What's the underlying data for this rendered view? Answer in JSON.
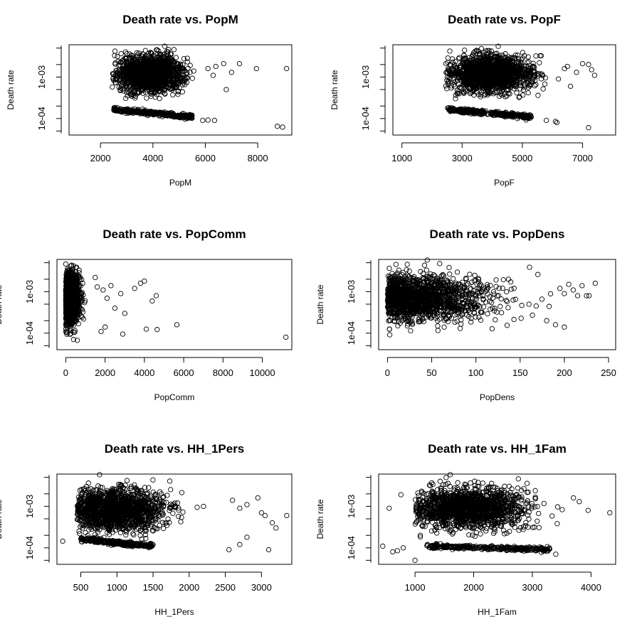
{
  "chart_data": [
    {
      "type": "scatter",
      "title": "Death rate vs. PopM",
      "xlabel": "PopM",
      "ylabel": "Death rate",
      "x_ticks": [
        "2000",
        "4000",
        "6000",
        "8000"
      ],
      "x_tick_values": [
        2000,
        4000,
        6000,
        8000
      ],
      "xlim": [
        800,
        9300
      ],
      "y_scale": "log",
      "y_ticks": [
        "1e-04",
        "1e-03"
      ],
      "y_tick_values": [
        0.0001,
        0.001
      ],
      "ylim": [
        4e-05,
        0.006
      ],
      "grid": false,
      "series": [
        {
          "cloud": {
            "x_range": [
              2450,
              5600
            ],
            "x_center": 3900,
            "x_sd": 650,
            "y_range": [
              0.0003,
              0.005
            ],
            "y_center": 0.0012,
            "log_sd": 0.45
          },
          "band": {
            "x_range": [
              2500,
              5500
            ],
            "y_at_start": 0.000165,
            "y_at_end": 0.00011
          },
          "points": [
            [
              6100,
              0.0016
            ],
            [
              6300,
              0.0011
            ],
            [
              6400,
              0.0018
            ],
            [
              6700,
              0.0021
            ],
            [
              7000,
              0.0013
            ],
            [
              7300,
              0.0021
            ],
            [
              7950,
              0.0016
            ],
            [
              9100,
              0.0016
            ],
            [
              8750,
              6.5e-05
            ],
            [
              8950,
              6.2e-05
            ],
            [
              4450,
              0.0055
            ],
            [
              5900,
              9e-05
            ],
            [
              6100,
              9.2e-05
            ],
            [
              6350,
              9e-05
            ],
            [
              6800,
              0.0005
            ]
          ]
        }
      ]
    },
    {
      "type": "scatter",
      "title": "Death rate vs. PopF",
      "xlabel": "PopF",
      "ylabel": "Death rate",
      "x_ticks": [
        "1000",
        "3000",
        "5000",
        "7000"
      ],
      "x_tick_values": [
        1000,
        3000,
        5000,
        7000
      ],
      "xlim": [
        700,
        8100
      ],
      "y_scale": "log",
      "y_ticks": [
        "1e-04",
        "1e-03"
      ],
      "y_tick_values": [
        0.0001,
        0.001
      ],
      "ylim": [
        4e-05,
        0.006
      ],
      "grid": false,
      "series": [
        {
          "cloud": {
            "x_range": [
              2450,
              5900
            ],
            "x_center": 3900,
            "x_sd": 700,
            "y_range": [
              0.0003,
              0.005
            ],
            "y_center": 0.0012,
            "log_sd": 0.45
          },
          "band": {
            "x_range": [
              2500,
              5300
            ],
            "y_at_start": 0.000165,
            "y_at_end": 0.00011
          },
          "points": [
            [
              6500,
              0.0018
            ],
            [
              6800,
              0.0013
            ],
            [
              7000,
              0.0021
            ],
            [
              7200,
              0.002
            ],
            [
              7300,
              0.0015
            ],
            [
              7400,
              0.0011
            ],
            [
              6600,
              0.0006
            ],
            [
              6100,
              8.5e-05
            ],
            [
              6150,
              8e-05
            ],
            [
              7200,
              6e-05
            ],
            [
              4200,
              0.0055
            ],
            [
              5800,
              9e-05
            ],
            [
              6400,
              0.0016
            ],
            [
              6200,
              0.0009
            ]
          ]
        }
      ]
    },
    {
      "type": "scatter",
      "title": "Death rate vs. PopComm",
      "xlabel": "PopComm",
      "ylabel": "Death rate",
      "x_ticks": [
        "0",
        "2000",
        "4000",
        "6000",
        "8000",
        "10000"
      ],
      "x_tick_values": [
        0,
        2000,
        4000,
        6000,
        8000,
        10000
      ],
      "xlim": [
        -450,
        11500
      ],
      "y_scale": "log",
      "y_ticks": [
        "1e-04",
        "1e-03"
      ],
      "y_tick_values": [
        0.0001,
        0.001
      ],
      "ylim": [
        4e-05,
        0.006
      ],
      "grid": false,
      "series": [
        {
          "cloud": {
            "x_range": [
              0,
              1400
            ],
            "x_center": 150,
            "x_sd": 250,
            "y_range": [
              6e-05,
              0.005
            ],
            "y_center": 0.0007,
            "log_sd": 0.6
          },
          "band": null,
          "points": [
            [
              1900,
              0.0011
            ],
            [
              2100,
              0.0007
            ],
            [
              2300,
              0.0014
            ],
            [
              2500,
              0.0004
            ],
            [
              2800,
              0.0009
            ],
            [
              3000,
              0.0003
            ],
            [
              3500,
              0.0012
            ],
            [
              3800,
              0.0016
            ],
            [
              4000,
              0.0018
            ],
            [
              4400,
              0.0006
            ],
            [
              4600,
              0.0008
            ],
            [
              4100,
              0.000125
            ],
            [
              4650,
              0.000122
            ],
            [
              5650,
              0.00016
            ],
            [
              2900,
              9.5e-05
            ],
            [
              11200,
              8e-05
            ],
            [
              1800,
              0.00011
            ],
            [
              2000,
              0.00014
            ],
            [
              1600,
              0.0013
            ],
            [
              1500,
              0.0022
            ]
          ]
        }
      ]
    },
    {
      "type": "scatter",
      "title": "Death rate vs. PopDens",
      "xlabel": "PopDens",
      "ylabel": "Death rate",
      "x_ticks": [
        "0",
        "50",
        "100",
        "150",
        "200",
        "250"
      ],
      "x_tick_values": [
        0,
        50,
        100,
        150,
        200,
        250
      ],
      "xlim": [
        -10,
        258
      ],
      "y_scale": "log",
      "y_ticks": [
        "1e-04",
        "1e-03"
      ],
      "y_tick_values": [
        0.0001,
        0.001
      ],
      "ylim": [
        4e-05,
        0.006
      ],
      "grid": false,
      "series": [
        {
          "cloud": {
            "x_range": [
              0,
              190
            ],
            "x_center": 0,
            "x_sd": 55,
            "y_range": [
              7e-05,
              0.005
            ],
            "y_center": 0.0007,
            "log_sd": 0.55
          },
          "band": null,
          "points": [
            [
              195,
              0.0012
            ],
            [
              200,
              0.0009
            ],
            [
              205,
              0.0015
            ],
            [
              210,
              0.0011
            ],
            [
              215,
              0.0008
            ],
            [
              220,
              0.0014
            ],
            [
              225,
              0.0008
            ],
            [
              235,
              0.0016
            ],
            [
              228,
              0.0008
            ],
            [
              200,
              0.00014
            ],
            [
              190,
              0.00016
            ],
            [
              170,
              0.0026
            ],
            [
              45,
              0.0058
            ],
            [
              180,
              0.0002
            ],
            [
              160,
              0.0005
            ]
          ]
        }
      ]
    },
    {
      "type": "scatter",
      "title": "Death rate vs. HH_1Pers",
      "xlabel": "HH_1Pers",
      "ylabel": "Death rate",
      "x_ticks": [
        "500",
        "1000",
        "1500",
        "2000",
        "2500",
        "3000"
      ],
      "x_tick_values": [
        500,
        1000,
        1500,
        2000,
        2500,
        3000
      ],
      "xlim": [
        170,
        3420
      ],
      "y_scale": "log",
      "y_ticks": [
        "1e-04",
        "1e-03"
      ],
      "y_tick_values": [
        0.0001,
        0.001
      ],
      "ylim": [
        4e-05,
        0.006
      ],
      "grid": false,
      "series": [
        {
          "cloud": {
            "x_range": [
              450,
              2400
            ],
            "x_center": 950,
            "x_sd": 380,
            "y_range": [
              7e-05,
              0.005
            ],
            "y_center": 0.0008,
            "log_sd": 0.5
          },
          "band": {
            "x_range": [
              500,
              1500
            ],
            "y_at_start": 0.00016,
            "y_at_end": 0.00011
          },
          "points": [
            [
              250,
              0.000145
            ],
            [
              2600,
              0.0014
            ],
            [
              2700,
              0.0009
            ],
            [
              2800,
              0.0011
            ],
            [
              2950,
              0.0016
            ],
            [
              3000,
              0.0007
            ],
            [
              3050,
              0.0006
            ],
            [
              3150,
              0.0004
            ],
            [
              3200,
              0.0003
            ],
            [
              3350,
              0.0006
            ],
            [
              2550,
              9e-05
            ],
            [
              2700,
              0.00012
            ],
            [
              3100,
              9e-05
            ],
            [
              2800,
              0.00018
            ],
            [
              760,
              0.0058
            ]
          ]
        }
      ]
    },
    {
      "type": "scatter",
      "title": "Death rate vs. HH_1Fam",
      "xlabel": "HH_1Fam",
      "ylabel": "Death rate",
      "x_ticks": [
        "1000",
        "2000",
        "3000",
        "4000"
      ],
      "x_tick_values": [
        1000,
        2000,
        3000,
        4000
      ],
      "xlim": [
        380,
        4420
      ],
      "y_scale": "log",
      "y_ticks": [
        "1e-04",
        "1e-03"
      ],
      "y_tick_values": [
        0.0001,
        0.001
      ],
      "ylim": [
        4e-05,
        0.006
      ],
      "grid": false,
      "series": [
        {
          "cloud": {
            "x_range": [
              1000,
              3700
            ],
            "x_center": 1900,
            "x_sd": 500,
            "y_range": [
              0.00018,
              0.005
            ],
            "y_center": 0.0009,
            "log_sd": 0.5
          },
          "band": {
            "x_range": [
              1200,
              3300
            ],
            "y_at_start": 0.00011,
            "y_at_end": 9e-05
          },
          "points": [
            [
              450,
              0.00011
            ],
            [
              560,
              0.0009
            ],
            [
              760,
              0.0019
            ],
            [
              620,
              8e-05
            ],
            [
              700,
              8.5e-05
            ],
            [
              800,
              0.0001
            ],
            [
              1000,
              5e-05
            ],
            [
              3400,
              7e-05
            ],
            [
              3800,
              0.0013
            ],
            [
              3950,
              0.0008
            ],
            [
              4320,
              0.0007
            ],
            [
              3700,
              0.0016
            ],
            [
              1600,
              0.0058
            ]
          ]
        }
      ]
    }
  ]
}
